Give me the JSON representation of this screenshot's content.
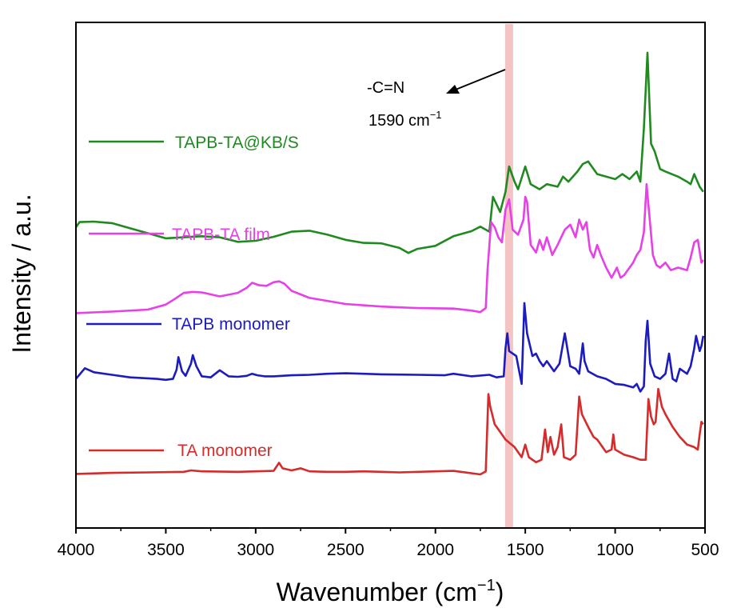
{
  "chart_data": {
    "type": "line",
    "title": "",
    "xlabel": "Wavenumber (cm",
    "xlabel_sup": "−1",
    "xlabel_end": ")",
    "ylabel": "Intensity / a.u.",
    "xlim": [
      4000,
      500
    ],
    "x_reversed": true,
    "xticks": [
      4000,
      3500,
      3000,
      2500,
      2000,
      1500,
      1000,
      500
    ],
    "y_ticks_shown": false,
    "highlight_band": {
      "center": 1590,
      "color": "#f2b8b8"
    },
    "annotation": {
      "label_line1": "-C=N",
      "label_line2": "1590 cm",
      "label_sup": "−1",
      "points_to": 1590
    },
    "series": [
      {
        "name": "TAPB-TA@KB/S",
        "color": "#1f8a1f",
        "legend": "TAPB-TA@KB/S",
        "points": [
          [
            4000,
            59.5
          ],
          [
            3980,
            60.5
          ],
          [
            3900,
            60.6
          ],
          [
            3800,
            60.3
          ],
          [
            3700,
            59.3
          ],
          [
            3600,
            58.3
          ],
          [
            3500,
            57.3
          ],
          [
            3400,
            57.5
          ],
          [
            3300,
            57.7
          ],
          [
            3200,
            57.5
          ],
          [
            3100,
            56.6
          ],
          [
            3000,
            56.8
          ],
          [
            2900,
            57.6
          ],
          [
            2800,
            58.6
          ],
          [
            2700,
            58.8
          ],
          [
            2600,
            58.0
          ],
          [
            2500,
            57.0
          ],
          [
            2400,
            56.4
          ],
          [
            2300,
            56.3
          ],
          [
            2200,
            55.4
          ],
          [
            2150,
            54.4
          ],
          [
            2100,
            55.2
          ],
          [
            2000,
            55.8
          ],
          [
            1900,
            57.7
          ],
          [
            1800,
            58.7
          ],
          [
            1750,
            59.6
          ],
          [
            1700,
            58.6
          ],
          [
            1680,
            65.5
          ],
          [
            1640,
            62.5
          ],
          [
            1610,
            66.5
          ],
          [
            1590,
            71.5
          ],
          [
            1560,
            68.5
          ],
          [
            1540,
            67.0
          ],
          [
            1500,
            71.5
          ],
          [
            1470,
            68.0
          ],
          [
            1420,
            67.0
          ],
          [
            1380,
            68.0
          ],
          [
            1320,
            67.5
          ],
          [
            1290,
            69.5
          ],
          [
            1260,
            68.5
          ],
          [
            1210,
            70.5
          ],
          [
            1180,
            72.0
          ],
          [
            1150,
            72.5
          ],
          [
            1100,
            70.0
          ],
          [
            1050,
            69.5
          ],
          [
            1000,
            69.0
          ],
          [
            960,
            70.0
          ],
          [
            920,
            69.0
          ],
          [
            880,
            70.5
          ],
          [
            860,
            68.5
          ],
          [
            840,
            79.0
          ],
          [
            820,
            94.0
          ],
          [
            800,
            76.0
          ],
          [
            780,
            74.5
          ],
          [
            750,
            71.0
          ],
          [
            720,
            70.5
          ],
          [
            650,
            69.5
          ],
          [
            600,
            68.5
          ],
          [
            580,
            68.0
          ],
          [
            560,
            70.0
          ],
          [
            530,
            67.5
          ],
          [
            510,
            66.5
          ]
        ]
      },
      {
        "name": "TAPB-TA film",
        "color": "#e640e6",
        "legend": "TAPB-TA film",
        "points": [
          [
            4000,
            42.5
          ],
          [
            3800,
            42.8
          ],
          [
            3600,
            43.2
          ],
          [
            3500,
            44.2
          ],
          [
            3450,
            45.3
          ],
          [
            3400,
            46.5
          ],
          [
            3350,
            46.7
          ],
          [
            3300,
            46.6
          ],
          [
            3200,
            45.8
          ],
          [
            3100,
            46.5
          ],
          [
            3050,
            47.5
          ],
          [
            3020,
            48.5
          ],
          [
            2980,
            48.0
          ],
          [
            2940,
            47.9
          ],
          [
            2900,
            48.6
          ],
          [
            2870,
            48.8
          ],
          [
            2840,
            48.3
          ],
          [
            2800,
            46.9
          ],
          [
            2700,
            45.5
          ],
          [
            2500,
            44.3
          ],
          [
            2300,
            43.8
          ],
          [
            2100,
            43.5
          ],
          [
            1900,
            43.4
          ],
          [
            1800,
            43.0
          ],
          [
            1750,
            42.7
          ],
          [
            1720,
            43.5
          ],
          [
            1710,
            51.0
          ],
          [
            1690,
            60.5
          ],
          [
            1670,
            59.5
          ],
          [
            1650,
            57.5
          ],
          [
            1630,
            56.5
          ],
          [
            1610,
            63.0
          ],
          [
            1590,
            65.0
          ],
          [
            1570,
            59.0
          ],
          [
            1540,
            58.0
          ],
          [
            1510,
            61.0
          ],
          [
            1500,
            65.5
          ],
          [
            1490,
            64.5
          ],
          [
            1470,
            56.0
          ],
          [
            1440,
            54.5
          ],
          [
            1420,
            57.0
          ],
          [
            1400,
            55.0
          ],
          [
            1380,
            57.5
          ],
          [
            1350,
            54.0
          ],
          [
            1320,
            56.0
          ],
          [
            1280,
            59.0
          ],
          [
            1250,
            60.0
          ],
          [
            1220,
            57.5
          ],
          [
            1200,
            61.0
          ],
          [
            1180,
            59.0
          ],
          [
            1160,
            60.5
          ],
          [
            1140,
            55.0
          ],
          [
            1120,
            53.5
          ],
          [
            1100,
            56.0
          ],
          [
            1080,
            54.0
          ],
          [
            1050,
            51.5
          ],
          [
            1020,
            49.5
          ],
          [
            990,
            51.5
          ],
          [
            970,
            49.5
          ],
          [
            950,
            50.0
          ],
          [
            900,
            52.5
          ],
          [
            880,
            54.0
          ],
          [
            860,
            55.0
          ],
          [
            840,
            58.5
          ],
          [
            825,
            68.0
          ],
          [
            810,
            62.0
          ],
          [
            790,
            54.0
          ],
          [
            770,
            52.0
          ],
          [
            750,
            51.5
          ],
          [
            720,
            52.5
          ],
          [
            690,
            51.0
          ],
          [
            650,
            51.5
          ],
          [
            600,
            51.0
          ],
          [
            580,
            53.5
          ],
          [
            560,
            56.5
          ],
          [
            540,
            57.0
          ],
          [
            520,
            52.5
          ],
          [
            510,
            53.0
          ]
        ]
      },
      {
        "name": "TAPB monomer",
        "color": "#1b1bbf",
        "legend": "TAPB monomer",
        "points": [
          [
            4000,
            29.5
          ],
          [
            3950,
            31.6
          ],
          [
            3900,
            30.8
          ],
          [
            3800,
            30.3
          ],
          [
            3700,
            29.8
          ],
          [
            3600,
            29.6
          ],
          [
            3550,
            29.5
          ],
          [
            3500,
            29.3
          ],
          [
            3460,
            29.5
          ],
          [
            3440,
            31.3
          ],
          [
            3430,
            33.8
          ],
          [
            3410,
            31.0
          ],
          [
            3390,
            30.1
          ],
          [
            3360,
            32.5
          ],
          [
            3350,
            34.2
          ],
          [
            3330,
            32.0
          ],
          [
            3300,
            30.0
          ],
          [
            3250,
            29.8
          ],
          [
            3200,
            31.2
          ],
          [
            3150,
            30.0
          ],
          [
            3100,
            29.9
          ],
          [
            3050,
            30.1
          ],
          [
            3020,
            30.5
          ],
          [
            2990,
            30.2
          ],
          [
            2950,
            30.0
          ],
          [
            2900,
            30.0
          ],
          [
            2800,
            30.2
          ],
          [
            2700,
            30.3
          ],
          [
            2600,
            30.5
          ],
          [
            2500,
            30.6
          ],
          [
            2400,
            30.5
          ],
          [
            2300,
            30.4
          ],
          [
            2100,
            30.3
          ],
          [
            1950,
            30.2
          ],
          [
            1900,
            30.5
          ],
          [
            1800,
            30.0
          ],
          [
            1700,
            30.3
          ],
          [
            1660,
            29.8
          ],
          [
            1620,
            30.0
          ],
          [
            1610,
            35.5
          ],
          [
            1600,
            38.5
          ],
          [
            1590,
            35.0
          ],
          [
            1550,
            34.0
          ],
          [
            1520,
            28.5
          ],
          [
            1505,
            44.5
          ],
          [
            1490,
            38.5
          ],
          [
            1460,
            34.0
          ],
          [
            1440,
            34.5
          ],
          [
            1420,
            33.0
          ],
          [
            1400,
            32.0
          ],
          [
            1380,
            33.0
          ],
          [
            1340,
            31.0
          ],
          [
            1310,
            32.5
          ],
          [
            1280,
            38.5
          ],
          [
            1250,
            32.0
          ],
          [
            1220,
            31.5
          ],
          [
            1200,
            30.5
          ],
          [
            1180,
            36.5
          ],
          [
            1170,
            33.0
          ],
          [
            1150,
            31.0
          ],
          [
            1100,
            30.0
          ],
          [
            1050,
            29.5
          ],
          [
            1000,
            28.5
          ],
          [
            950,
            28.3
          ],
          [
            900,
            27.8
          ],
          [
            880,
            28.5
          ],
          [
            860,
            27.0
          ],
          [
            840,
            28.0
          ],
          [
            830,
            37.0
          ],
          [
            820,
            41.0
          ],
          [
            805,
            32.5
          ],
          [
            780,
            30.0
          ],
          [
            750,
            29.5
          ],
          [
            720,
            30.5
          ],
          [
            700,
            34.5
          ],
          [
            680,
            29.5
          ],
          [
            660,
            29.0
          ],
          [
            640,
            31.5
          ],
          [
            600,
            30.5
          ],
          [
            580,
            32.0
          ],
          [
            560,
            35.5
          ],
          [
            550,
            38.0
          ],
          [
            530,
            35.0
          ],
          [
            520,
            36.0
          ],
          [
            510,
            38.0
          ]
        ]
      },
      {
        "name": "TA monomer",
        "color": "#d62b2b",
        "legend": "TA monomer",
        "points": [
          [
            4000,
            10.7
          ],
          [
            3800,
            10.9
          ],
          [
            3600,
            11.0
          ],
          [
            3400,
            11.1
          ],
          [
            3360,
            11.4
          ],
          [
            3300,
            11.2
          ],
          [
            3100,
            11.1
          ],
          [
            3000,
            11.2
          ],
          [
            2900,
            11.3
          ],
          [
            2870,
            12.9
          ],
          [
            2850,
            11.8
          ],
          [
            2800,
            11.4
          ],
          [
            2750,
            11.8
          ],
          [
            2700,
            11.2
          ],
          [
            2600,
            11.1
          ],
          [
            2500,
            11.1
          ],
          [
            2400,
            11.2
          ],
          [
            2300,
            11.1
          ],
          [
            2200,
            11.0
          ],
          [
            2000,
            11.2
          ],
          [
            1900,
            11.3
          ],
          [
            1750,
            10.6
          ],
          [
            1720,
            11.2
          ],
          [
            1705,
            26.5
          ],
          [
            1695,
            24.0
          ],
          [
            1670,
            20.5
          ],
          [
            1640,
            19.0
          ],
          [
            1610,
            17.5
          ],
          [
            1560,
            16.0
          ],
          [
            1520,
            14.0
          ],
          [
            1500,
            16.5
          ],
          [
            1480,
            14.0
          ],
          [
            1440,
            13.0
          ],
          [
            1410,
            13.5
          ],
          [
            1390,
            19.5
          ],
          [
            1375,
            15.0
          ],
          [
            1360,
            18.0
          ],
          [
            1340,
            14.5
          ],
          [
            1320,
            16.0
          ],
          [
            1300,
            20.5
          ],
          [
            1285,
            14.0
          ],
          [
            1250,
            13.5
          ],
          [
            1220,
            14.5
          ],
          [
            1200,
            26.0
          ],
          [
            1185,
            22.5
          ],
          [
            1150,
            20.0
          ],
          [
            1120,
            18.0
          ],
          [
            1100,
            17.5
          ],
          [
            1080,
            16.5
          ],
          [
            1050,
            15.0
          ],
          [
            1020,
            15.5
          ],
          [
            1010,
            18.5
          ],
          [
            1000,
            15.5
          ],
          [
            950,
            14.5
          ],
          [
            900,
            14.0
          ],
          [
            860,
            13.5
          ],
          [
            830,
            13.5
          ],
          [
            815,
            25.5
          ],
          [
            800,
            22.0
          ],
          [
            785,
            20.5
          ],
          [
            775,
            21.0
          ],
          [
            760,
            27.5
          ],
          [
            740,
            24.0
          ],
          [
            720,
            22.5
          ],
          [
            680,
            20.0
          ],
          [
            640,
            18.0
          ],
          [
            600,
            16.5
          ],
          [
            560,
            16.0
          ],
          [
            540,
            15.5
          ],
          [
            530,
            18.5
          ],
          [
            520,
            21.0
          ],
          [
            510,
            20.5
          ]
        ]
      }
    ]
  }
}
